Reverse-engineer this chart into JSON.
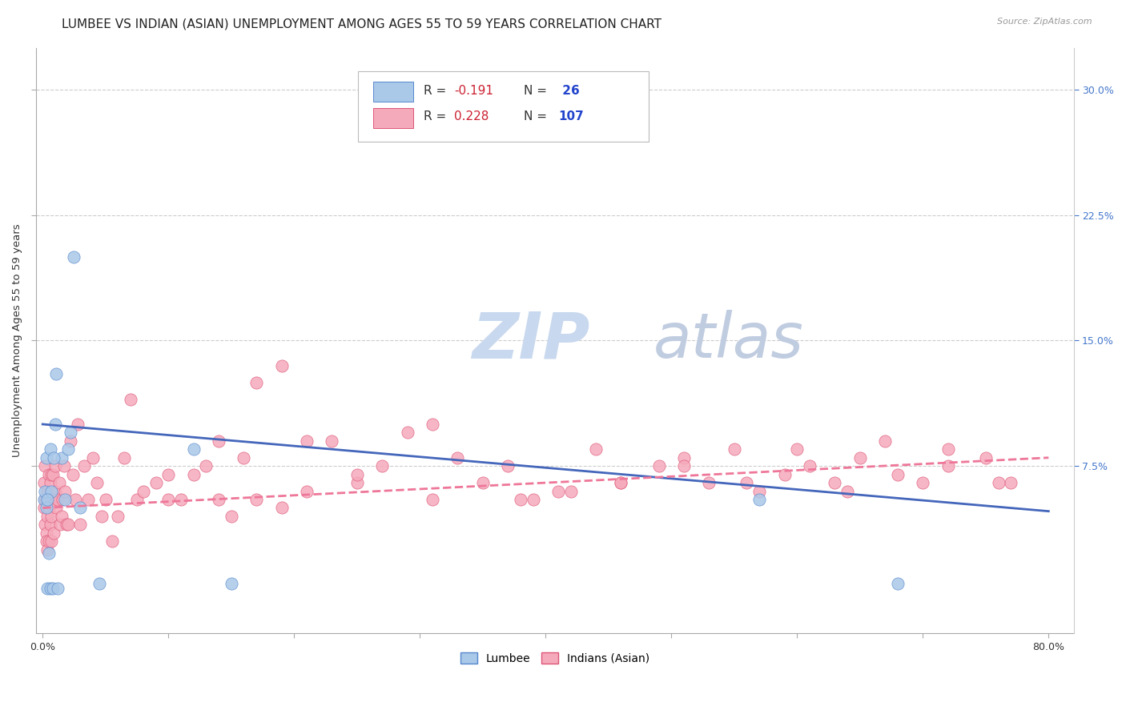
{
  "title": "LUMBEE VS INDIAN (ASIAN) UNEMPLOYMENT AMONG AGES 55 TO 59 YEARS CORRELATION CHART",
  "source": "Source: ZipAtlas.com",
  "xlabel": "",
  "ylabel": "Unemployment Among Ages 55 to 59 years",
  "xlim": [
    -0.005,
    0.82
  ],
  "ylim": [
    -0.025,
    0.325
  ],
  "yticks_right": [
    0.075,
    0.15,
    0.225,
    0.3
  ],
  "ytick_right_labels": [
    "7.5%",
    "15.0%",
    "22.5%",
    "30.0%"
  ],
  "grid_color": "#cccccc",
  "background_color": "#ffffff",
  "lumbee_color": "#aac8e8",
  "lumbee_edge_color": "#5588cc",
  "indian_color": "#f5aabb",
  "indian_edge_color": "#dd5577",
  "lumbee_trend_color": "#4466bb",
  "indian_trend_color": "#ee7799",
  "legend_R_lumbee": "R = -0.191",
  "legend_N_lumbee": "N =  26",
  "legend_R_indian": "R = 0.228",
  "legend_N_indian": "N = 107",
  "lumbee_x": [
    0.001,
    0.002,
    0.003,
    0.004,
    0.005,
    0.006,
    0.007,
    0.008,
    0.01,
    0.012,
    0.015,
    0.018,
    0.02,
    0.022,
    0.025,
    0.003,
    0.004,
    0.006,
    0.009,
    0.011,
    0.03,
    0.045,
    0.57,
    0.68,
    0.12,
    0.15
  ],
  "lumbee_y": [
    0.055,
    0.06,
    0.05,
    0.002,
    0.023,
    0.002,
    0.06,
    0.002,
    0.1,
    0.002,
    0.08,
    0.055,
    0.085,
    0.095,
    0.2,
    0.08,
    0.055,
    0.085,
    0.08,
    0.13,
    0.05,
    0.005,
    0.055,
    0.005,
    0.085,
    0.005
  ],
  "indian_x": [
    0.001,
    0.001,
    0.002,
    0.002,
    0.002,
    0.003,
    0.003,
    0.003,
    0.004,
    0.004,
    0.004,
    0.005,
    0.005,
    0.005,
    0.006,
    0.006,
    0.006,
    0.007,
    0.007,
    0.007,
    0.008,
    0.008,
    0.009,
    0.009,
    0.01,
    0.01,
    0.011,
    0.012,
    0.013,
    0.014,
    0.015,
    0.016,
    0.017,
    0.018,
    0.019,
    0.02,
    0.022,
    0.024,
    0.026,
    0.028,
    0.03,
    0.033,
    0.036,
    0.04,
    0.043,
    0.047,
    0.05,
    0.055,
    0.06,
    0.065,
    0.07,
    0.075,
    0.08,
    0.09,
    0.1,
    0.11,
    0.12,
    0.13,
    0.14,
    0.15,
    0.16,
    0.17,
    0.19,
    0.21,
    0.23,
    0.25,
    0.27,
    0.29,
    0.31,
    0.33,
    0.35,
    0.37,
    0.39,
    0.41,
    0.44,
    0.46,
    0.49,
    0.51,
    0.53,
    0.55,
    0.57,
    0.59,
    0.61,
    0.63,
    0.65,
    0.67,
    0.7,
    0.72,
    0.75,
    0.77,
    0.17,
    0.19,
    0.21,
    0.31,
    0.38,
    0.42,
    0.46,
    0.51,
    0.56,
    0.6,
    0.64,
    0.68,
    0.72,
    0.76,
    0.1,
    0.14,
    0.25
  ],
  "indian_y": [
    0.05,
    0.065,
    0.04,
    0.055,
    0.075,
    0.035,
    0.055,
    0.03,
    0.025,
    0.045,
    0.06,
    0.03,
    0.05,
    0.07,
    0.04,
    0.055,
    0.065,
    0.03,
    0.045,
    0.07,
    0.055,
    0.07,
    0.035,
    0.055,
    0.06,
    0.075,
    0.05,
    0.055,
    0.065,
    0.04,
    0.045,
    0.055,
    0.075,
    0.06,
    0.04,
    0.04,
    0.09,
    0.07,
    0.055,
    0.1,
    0.04,
    0.075,
    0.055,
    0.08,
    0.065,
    0.045,
    0.055,
    0.03,
    0.045,
    0.08,
    0.115,
    0.055,
    0.06,
    0.065,
    0.07,
    0.055,
    0.07,
    0.075,
    0.055,
    0.045,
    0.08,
    0.055,
    0.05,
    0.06,
    0.09,
    0.065,
    0.075,
    0.095,
    0.055,
    0.08,
    0.065,
    0.075,
    0.055,
    0.06,
    0.085,
    0.065,
    0.075,
    0.08,
    0.065,
    0.085,
    0.06,
    0.07,
    0.075,
    0.065,
    0.08,
    0.09,
    0.065,
    0.075,
    0.08,
    0.065,
    0.125,
    0.135,
    0.09,
    0.1,
    0.055,
    0.06,
    0.065,
    0.075,
    0.065,
    0.085,
    0.06,
    0.07,
    0.085,
    0.065,
    0.055,
    0.09,
    0.07
  ],
  "lumbee_trend_y_start": 0.1,
  "lumbee_trend_y_end": 0.048,
  "indian_trend_y_start": 0.05,
  "indian_trend_y_end": 0.08,
  "title_fontsize": 11,
  "axis_label_fontsize": 9.5,
  "tick_fontsize": 9,
  "legend_fontsize": 11,
  "watermark_zip_color": "#c8d8ee",
  "watermark_atlas_color": "#c0cce0",
  "watermark_fontsize": 58
}
